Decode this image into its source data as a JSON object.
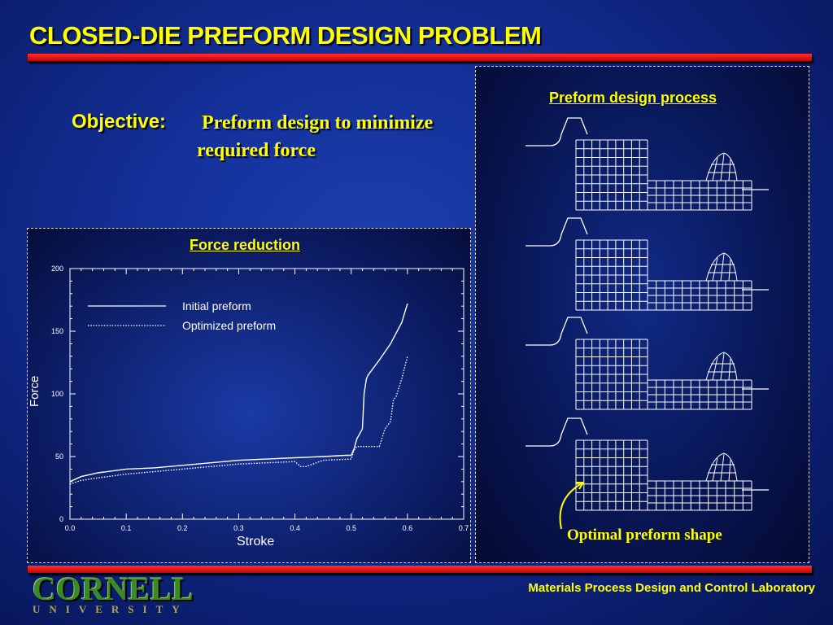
{
  "title": "CLOSED-DIE PREFORM DESIGN PROBLEM",
  "objective": {
    "label": "Objective:",
    "text": "Preform design to minimize required force"
  },
  "left_panel": {
    "title": "Force reduction"
  },
  "right_panel": {
    "title": "Preform design process",
    "caption": "Optimal preform shape"
  },
  "footer": {
    "lab": "Materials Process Design and Control Laboratory",
    "logo_main": "CORNELL",
    "logo_sub": "UNIVERSITY"
  },
  "colors": {
    "title": "#ffff00",
    "bar": "#e00000",
    "background": "#14309a",
    "curve": "#ffffff"
  },
  "chart_data": {
    "type": "line",
    "xlabel": "Stroke",
    "ylabel": "Force",
    "xlim": [
      0,
      0.7
    ],
    "ylim": [
      0,
      200
    ],
    "x_ticks": [
      "0.0",
      "0.1",
      "0.2",
      "0.3",
      "0.4",
      "0.5",
      "0.6",
      "0.7"
    ],
    "y_ticks": [
      "0",
      "50",
      "100",
      "150",
      "200"
    ],
    "legend_position": "top-left",
    "series": [
      {
        "name": "Initial preform",
        "style": "solid",
        "x": [
          0.0,
          0.02,
          0.05,
          0.1,
          0.15,
          0.2,
          0.25,
          0.3,
          0.35,
          0.4,
          0.45,
          0.49,
          0.5,
          0.505,
          0.51,
          0.52,
          0.523,
          0.527,
          0.53,
          0.55,
          0.57,
          0.59,
          0.6
        ],
        "y": [
          30,
          34,
          37,
          40,
          41,
          43,
          45,
          47,
          48,
          49,
          50,
          51,
          51,
          56,
          64,
          72,
          100,
          112,
          115,
          127,
          140,
          157,
          172
        ]
      },
      {
        "name": "Optimized preform",
        "style": "dotted",
        "x": [
          0.0,
          0.02,
          0.05,
          0.1,
          0.15,
          0.2,
          0.25,
          0.3,
          0.35,
          0.4,
          0.41,
          0.42,
          0.45,
          0.5,
          0.505,
          0.51,
          0.52,
          0.53,
          0.55,
          0.56,
          0.57,
          0.575,
          0.58,
          0.59,
          0.6
        ],
        "y": [
          28,
          31,
          33,
          36,
          38,
          40,
          42,
          44,
          45,
          46,
          42,
          42,
          47,
          48,
          55,
          58,
          58,
          58,
          58,
          72,
          78,
          95,
          98,
          112,
          130
        ]
      }
    ]
  }
}
